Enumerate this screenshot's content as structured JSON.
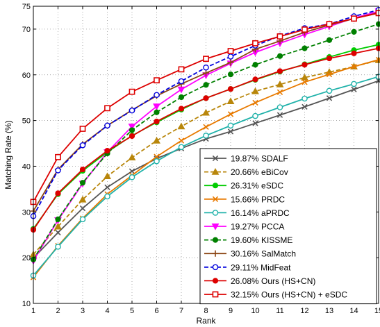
{
  "chart_data": {
    "type": "line",
    "title": "",
    "xlabel": "Rank",
    "ylabel": "Matching Rate (%)",
    "xlim": [
      1,
      15
    ],
    "ylim": [
      10,
      75
    ],
    "x": [
      1,
      2,
      3,
      4,
      5,
      6,
      7,
      8,
      9,
      10,
      11,
      12,
      13,
      14,
      15
    ],
    "x_ticks": [
      1,
      2,
      3,
      4,
      5,
      6,
      7,
      8,
      9,
      10,
      11,
      12,
      13,
      14,
      15
    ],
    "y_ticks": [
      10,
      20,
      30,
      40,
      50,
      60,
      70,
      75
    ],
    "grid": true,
    "legend_position": "bottom-right",
    "series": [
      {
        "name": "19.87% SDALF",
        "color": "#555555",
        "marker": "x",
        "dash": "solid",
        "values": [
          19.9,
          25.5,
          30.8,
          35.4,
          38.9,
          41.7,
          43.9,
          46.0,
          47.6,
          49.4,
          51.2,
          53.0,
          54.9,
          56.8,
          58.7
        ]
      },
      {
        "name": "20.66% eBiCov",
        "color": "#b8860b",
        "marker": "triangle",
        "dash": "dashed",
        "values": [
          20.7,
          26.8,
          32.7,
          37.8,
          41.9,
          45.6,
          48.7,
          51.7,
          54.2,
          56.4,
          57.9,
          59.4,
          60.6,
          61.8,
          63.2
        ]
      },
      {
        "name": "26.31% eSDC",
        "color": "#00cc00",
        "marker": "dot",
        "dash": "solid",
        "values": [
          26.3,
          33.9,
          39.0,
          43.1,
          46.7,
          49.6,
          52.4,
          54.9,
          56.9,
          58.9,
          60.7,
          62.3,
          63.9,
          65.4,
          66.6
        ]
      },
      {
        "name": "15.66% PRDC",
        "color": "#e87a00",
        "marker": "x",
        "dash": "solid",
        "values": [
          15.7,
          22.6,
          28.6,
          33.9,
          38.0,
          42.1,
          45.6,
          48.6,
          51.4,
          53.9,
          56.2,
          58.4,
          60.1,
          61.8,
          63.3
        ]
      },
      {
        "name": "16.14% aPRDC",
        "color": "#20b2aa",
        "marker": "circle",
        "dash": "solid",
        "values": [
          16.1,
          22.4,
          28.4,
          33.4,
          37.6,
          41.1,
          44.2,
          46.7,
          48.9,
          51.0,
          52.9,
          54.8,
          56.5,
          58.0,
          59.6
        ]
      },
      {
        "name": "19.27% PCCA",
        "color": "#ff00ff",
        "marker": "triangle-down",
        "dash": "solid",
        "values": [
          19.3,
          28.2,
          36.2,
          43.1,
          48.7,
          53.1,
          56.8,
          59.9,
          62.5,
          64.9,
          66.9,
          68.8,
          70.6,
          72.4,
          73.9
        ]
      },
      {
        "name": "19.60% KISSME",
        "color": "#008000",
        "marker": "dot",
        "dash": "dashed",
        "values": [
          19.6,
          28.4,
          36.4,
          42.8,
          47.9,
          51.8,
          55.1,
          57.8,
          60.1,
          62.2,
          64.1,
          65.8,
          67.6,
          69.4,
          71.1
        ]
      },
      {
        "name": "30.16% SalMatch",
        "color": "#8b4513",
        "marker": "plus",
        "dash": "solid",
        "values": [
          30.2,
          39.3,
          44.8,
          48.9,
          52.3,
          55.4,
          58.0,
          60.4,
          62.7,
          65.6,
          67.4,
          69.3,
          70.9,
          72.3,
          73.6
        ]
      },
      {
        "name": "29.11% MidFeat",
        "color": "#0000dd",
        "marker": "circle",
        "dash": "dashed",
        "values": [
          29.1,
          39.1,
          44.6,
          48.9,
          52.2,
          55.6,
          58.6,
          61.6,
          64.0,
          66.4,
          68.5,
          70.2,
          71.1,
          72.8,
          74.2
        ]
      },
      {
        "name": "26.08% Ours (HS+CN)",
        "color": "#dd0000",
        "marker": "dot",
        "dash": "solid",
        "values": [
          26.1,
          34.1,
          39.3,
          43.4,
          46.6,
          49.8,
          52.6,
          54.9,
          56.9,
          59.0,
          60.8,
          62.2,
          63.6,
          64.7,
          65.8
        ]
      },
      {
        "name": "32.15% Ours (HS+CN) + eSDC",
        "color": "#dd0000",
        "marker": "square",
        "dash": "solid",
        "values": [
          32.2,
          42.0,
          48.2,
          52.7,
          56.3,
          58.8,
          61.2,
          63.5,
          65.2,
          66.9,
          68.4,
          69.9,
          71.1,
          72.3,
          73.5
        ]
      }
    ]
  }
}
